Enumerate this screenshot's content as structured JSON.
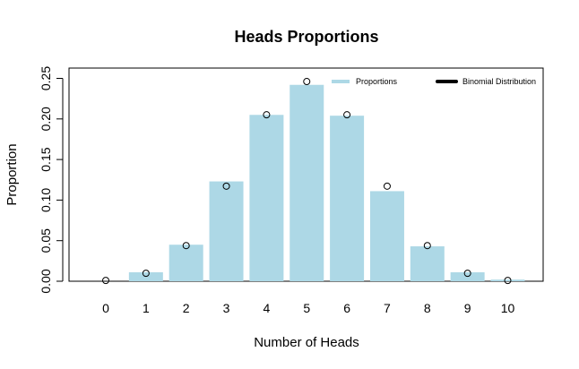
{
  "chart_data": {
    "type": "bar",
    "title": "Heads Proportions",
    "xlabel": "Number of Heads",
    "ylabel": "Proportion",
    "categories": [
      "0",
      "1",
      "2",
      "3",
      "4",
      "5",
      "6",
      "7",
      "8",
      "9",
      "10"
    ],
    "series": [
      {
        "name": "Proportions",
        "kind": "bar",
        "color": "#add8e6",
        "values": [
          0.0,
          0.011,
          0.045,
          0.123,
          0.205,
          0.242,
          0.204,
          0.111,
          0.043,
          0.011,
          0.002
        ]
      },
      {
        "name": "Binomial Distribution",
        "kind": "points",
        "color": "#000000",
        "values": [
          0.00098,
          0.0098,
          0.0439,
          0.1172,
          0.2051,
          0.2461,
          0.2051,
          0.1172,
          0.0439,
          0.0098,
          0.00098
        ]
      }
    ],
    "y_ticks": [
      "0.00",
      "0.05",
      "0.10",
      "0.15",
      "0.20",
      "0.25"
    ],
    "ylim": [
      0,
      0.25
    ],
    "grid": false,
    "legend_position": "top-right"
  }
}
